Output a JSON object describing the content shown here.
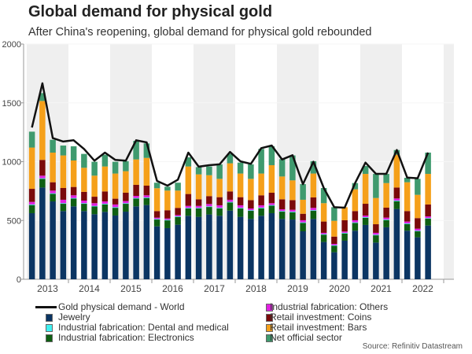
{
  "chart_data": {
    "type": "bar",
    "stacked": true,
    "title": "Global demand for physical gold",
    "subtitle": "After China's reopening, global demand for physical gold rebounded",
    "source": "Source: Refinitiv Datastream",
    "xlabel": "",
    "ylabel": "",
    "ylim": [
      0,
      2000
    ],
    "yticks": [
      "0",
      "500",
      "1000",
      "1500",
      "2000"
    ],
    "xtick_labels": [
      "2013",
      "2014",
      "2015",
      "2016",
      "2017",
      "2018",
      "2019",
      "2020",
      "2021",
      "2022"
    ],
    "x_range": [
      "2013-Q1",
      "2023-Q4"
    ],
    "categories": [
      "2013-Q1",
      "2013-Q2",
      "2013-Q3",
      "2013-Q4",
      "2014-Q1",
      "2014-Q2",
      "2014-Q3",
      "2014-Q4",
      "2015-Q1",
      "2015-Q2",
      "2015-Q3",
      "2015-Q4",
      "2016-Q1",
      "2016-Q2",
      "2016-Q3",
      "2016-Q4",
      "2017-Q1",
      "2017-Q2",
      "2017-Q3",
      "2017-Q4",
      "2018-Q1",
      "2018-Q2",
      "2018-Q3",
      "2018-Q4",
      "2019-Q1",
      "2019-Q2",
      "2019-Q3",
      "2019-Q4",
      "2020-Q1",
      "2020-Q2",
      "2020-Q3",
      "2020-Q4",
      "2021-Q1",
      "2021-Q2",
      "2021-Q3",
      "2021-Q4",
      "2022-Q1",
      "2022-Q2",
      "2022-Q3"
    ],
    "grid": true,
    "alternating_year_shading": true,
    "legend_position": "bottom",
    "series": [
      {
        "name": "Jewelry",
        "color": "#0b3563",
        "values": [
          562,
          780,
          662,
          580,
          620,
          580,
          553,
          573,
          542,
          575,
          620,
          631,
          450,
          435,
          464,
          540,
          531,
          551,
          540,
          584,
          531,
          513,
          540,
          562,
          513,
          508,
          408,
          513,
          317,
          230,
          328,
          413,
          462,
          312,
          442,
          598,
          413,
          357,
          457
        ]
      },
      {
        "name": "Industrial fabrication: Electronics",
        "color": "#0e5e12",
        "values": [
          69,
          74,
          64,
          62,
          66,
          62,
          66,
          64,
          66,
          67,
          66,
          60,
          58,
          66,
          66,
          62,
          71,
          64,
          62,
          69,
          71,
          69,
          64,
          64,
          62,
          62,
          71,
          69,
          62,
          55,
          62,
          66,
          61,
          62,
          61,
          66,
          57,
          51,
          58
        ]
      },
      {
        "name": "Industrial fabrication: Dental and medical",
        "color": "#3ff0f0",
        "values": [
          5,
          5,
          5,
          5,
          5,
          5,
          5,
          5,
          5,
          5,
          5,
          5,
          5,
          5,
          5,
          5,
          5,
          5,
          5,
          5,
          5,
          5,
          5,
          5,
          5,
          5,
          5,
          5,
          5,
          5,
          5,
          5,
          5,
          5,
          5,
          5,
          5,
          5,
          5
        ]
      },
      {
        "name": "Industrial fabrication: Others",
        "color": "#e020e0",
        "values": [
          22,
          22,
          23,
          29,
          23,
          22,
          23,
          20,
          23,
          18,
          18,
          18,
          11,
          11,
          11,
          17,
          17,
          20,
          22,
          18,
          22,
          15,
          20,
          16,
          15,
          16,
          18,
          20,
          11,
          11,
          11,
          18,
          14,
          16,
          16,
          18,
          16,
          17,
          15
        ]
      },
      {
        "name": "Retail investment: Coins",
        "color": "#7a0a0a",
        "values": [
          111,
          134,
          71,
          100,
          71,
          74,
          55,
          85,
          49,
          71,
          94,
          82,
          56,
          70,
          61,
          101,
          56,
          67,
          69,
          71,
          69,
          71,
          85,
          89,
          85,
          82,
          55,
          89,
          96,
          62,
          96,
          78,
          100,
          73,
          85,
          93,
          89,
          90,
          101
        ]
      },
      {
        "name": "Retail investment: Bars",
        "color": "#f5a01a",
        "values": [
          351,
          501,
          252,
          277,
          225,
          205,
          179,
          212,
          214,
          183,
          216,
          236,
          194,
          167,
          147,
          234,
          212,
          178,
          156,
          239,
          201,
          181,
          185,
          234,
          194,
          168,
          119,
          203,
          156,
          134,
          111,
          185,
          254,
          223,
          209,
          279,
          245,
          198,
          260
        ]
      },
      {
        "name": "Net official sector",
        "color": "#3f9a6e",
        "values": [
          135,
          67,
          109,
          84,
          121,
          118,
          118,
          100,
          100,
          85,
          158,
          123,
          47,
          33,
          67,
          78,
          62,
          74,
          123,
          80,
          93,
          123,
          209,
          161,
          147,
          212,
          133,
          105,
          129,
          116,
          0,
          53,
          67,
          205,
          78,
          40,
          38,
          136,
          181
        ]
      }
    ],
    "line": {
      "name": "Gold physical demand - World",
      "color": "#111111",
      "values": [
        1290,
        1666,
        1200,
        1171,
        1182,
        1108,
        1008,
        1077,
        1015,
        1008,
        1182,
        1164,
        836,
        796,
        847,
        1077,
        957,
        970,
        977,
        1082,
        1003,
        981,
        1115,
        1137,
        1019,
        1055,
        809,
        999,
        776,
        613,
        609,
        818,
        992,
        896,
        896,
        1099,
        865,
        859,
        1077
      ]
    },
    "legend": [
      {
        "label": "Gold physical demand - World",
        "kind": "line",
        "color": "#111111"
      },
      {
        "label": "Jewelry",
        "kind": "box",
        "color": "#0b3563"
      },
      {
        "label": "Industrial fabrication: Dental and medical",
        "kind": "box",
        "color": "#3ff0f0"
      },
      {
        "label": "Industrial fabrication: Electronics",
        "kind": "box",
        "color": "#0e5e12"
      },
      {
        "label": "Industrial fabrication: Others",
        "kind": "box",
        "color": "#e020e0"
      },
      {
        "label": "Retail investment: Coins",
        "kind": "box",
        "color": "#7a0a0a"
      },
      {
        "label": "Retail investment: Bars",
        "kind": "box",
        "color": "#f5a01a"
      },
      {
        "label": "Net official sector",
        "kind": "box",
        "color": "#3f9a6e"
      }
    ]
  }
}
